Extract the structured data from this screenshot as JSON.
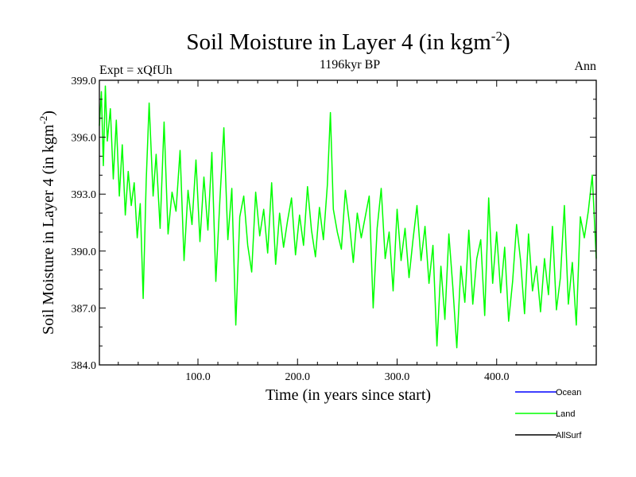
{
  "chart_data": {
    "type": "line",
    "title": "Soil Moisture in Layer 4 (in kgm",
    "title_sup": "-2",
    "title_close": ")",
    "subtitle": "1196kyr BP",
    "left_label": "Expt = xQfUh",
    "right_label": "Ann",
    "xlabel": "Time (in years since start)",
    "ylabel": "Soil Moisture in Layer 4 (in kgm",
    "ylabel_sup": "-2",
    "ylabel_close": ")",
    "xlim": [
      1,
      500
    ],
    "ylim": [
      384.0,
      399.0
    ],
    "x_ticks": [
      100,
      200,
      300,
      400
    ],
    "x_tick_labels": [
      "100.0",
      "200.0",
      "300.0",
      "400.0"
    ],
    "y_ticks": [
      384,
      387,
      390,
      393,
      396,
      399
    ],
    "y_tick_labels": [
      "384.0",
      "387.0",
      "390.0",
      "393.0",
      "396.0",
      "399.0"
    ],
    "series": [
      {
        "name": "Land",
        "color": "#00ff00",
        "x": [
          1,
          3,
          5,
          7,
          9,
          12,
          15,
          18,
          21,
          24,
          27,
          30,
          33,
          36,
          39,
          42,
          45,
          48,
          51,
          55,
          58,
          62,
          66,
          70,
          74,
          78,
          82,
          86,
          90,
          94,
          98,
          102,
          106,
          110,
          114,
          118,
          122,
          126,
          130,
          134,
          138,
          142,
          146,
          150,
          154,
          158,
          162,
          166,
          170,
          174,
          178,
          182,
          186,
          190,
          194,
          198,
          202,
          206,
          210,
          214,
          218,
          222,
          226,
          230,
          233,
          236,
          240,
          244,
          248,
          252,
          256,
          260,
          264,
          268,
          272,
          276,
          280,
          284,
          288,
          292,
          296,
          300,
          304,
          308,
          312,
          316,
          320,
          324,
          328,
          332,
          336,
          340,
          344,
          348,
          352,
          356,
          360,
          364,
          368,
          372,
          376,
          380,
          384,
          388,
          392,
          396,
          400,
          404,
          408,
          412,
          416,
          420,
          424,
          428,
          432,
          436,
          440,
          444,
          448,
          452,
          456,
          460,
          464,
          468,
          472,
          476,
          480,
          484,
          488,
          492,
          496,
          500
        ],
        "values": [
          396.6,
          398.4,
          394.5,
          398.7,
          395.8,
          397.5,
          393.8,
          396.9,
          392.9,
          395.6,
          391.9,
          394.2,
          392.4,
          393.6,
          390.7,
          392.5,
          387.5,
          393.7,
          397.8,
          392.9,
          395.1,
          391.2,
          396.8,
          390.9,
          393.1,
          392.1,
          395.3,
          389.5,
          393.2,
          391.4,
          394.8,
          390.5,
          393.9,
          391.1,
          395.2,
          388.4,
          392.7,
          396.5,
          390.6,
          393.3,
          386.1,
          391.8,
          392.9,
          390.3,
          388.9,
          393.1,
          390.8,
          392.2,
          389.9,
          393.6,
          389.3,
          392.0,
          390.2,
          391.6,
          392.8,
          389.8,
          391.9,
          390.3,
          393.4,
          391.1,
          389.7,
          392.3,
          390.6,
          393.5,
          397.3,
          392.2,
          391.0,
          390.1,
          393.2,
          391.5,
          389.4,
          392.0,
          390.7,
          391.8,
          392.9,
          387.0,
          391.2,
          393.3,
          389.6,
          391.0,
          387.9,
          392.2,
          389.5,
          391.2,
          388.6,
          390.6,
          392.4,
          389.5,
          391.3,
          388.3,
          390.3,
          385.0,
          389.2,
          386.4,
          390.9,
          388.1,
          384.9,
          389.2,
          387.3,
          391.1,
          387.2,
          389.6,
          390.6,
          386.6,
          392.8,
          388.3,
          391.0,
          387.8,
          390.2,
          386.3,
          388.4,
          391.4,
          389.5,
          386.7,
          390.9,
          387.9,
          389.2,
          386.8,
          389.6,
          387.7,
          391.3,
          386.9,
          388.6,
          392.4,
          387.2,
          389.4,
          386.1,
          391.8,
          390.7,
          392.1,
          394.0,
          389.6
        ]
      },
      {
        "name": "Ocean",
        "color": "#0000ff",
        "x": [],
        "values": []
      },
      {
        "name": "AllSurf",
        "color": "#000000",
        "x": [],
        "values": []
      }
    ],
    "legend": [
      "Ocean",
      "Land",
      "AllSurf"
    ],
    "legend_position": "bottom-right"
  }
}
